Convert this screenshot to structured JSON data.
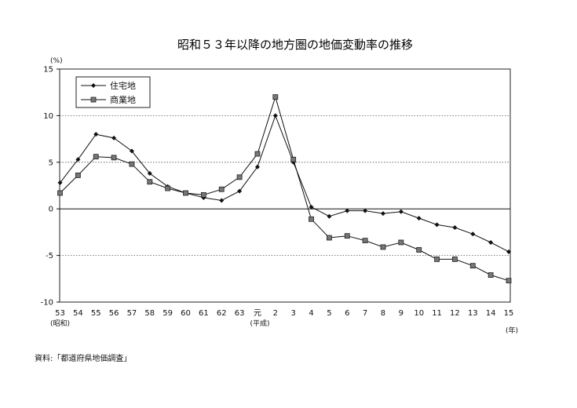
{
  "chart_data": {
    "type": "line",
    "title": "昭和５３年以降の地方圏の地価変動率の推移",
    "yunit": "(%)",
    "xunit": "(年)",
    "era_label_showa": "(昭和)",
    "era_label_heisei": "(平成)",
    "categories": [
      "53",
      "54",
      "55",
      "56",
      "57",
      "58",
      "59",
      "60",
      "61",
      "62",
      "63",
      "元",
      "2",
      "3",
      "4",
      "5",
      "6",
      "7",
      "8",
      "9",
      "10",
      "11",
      "12",
      "13",
      "14",
      "15"
    ],
    "ylim": [
      -10,
      15
    ],
    "yticks": [
      -10,
      -5,
      0,
      5,
      10,
      15
    ],
    "grid": "dotted-horizontal",
    "legend_position": "top-left",
    "series": [
      {
        "name": "住宅地",
        "marker": "diamond",
        "values": [
          2.8,
          5.3,
          8.0,
          7.6,
          6.2,
          3.8,
          2.4,
          1.7,
          1.2,
          0.9,
          1.9,
          4.5,
          10.0,
          5.0,
          0.2,
          -0.8,
          -0.2,
          -0.2,
          -0.5,
          -0.3,
          -1.0,
          -1.7,
          -2.0,
          -2.7,
          -3.6,
          -4.6
        ]
      },
      {
        "name": "商業地",
        "marker": "square",
        "values": [
          1.7,
          3.6,
          5.6,
          5.5,
          4.8,
          2.9,
          2.2,
          1.7,
          1.5,
          2.1,
          3.4,
          5.9,
          12.0,
          5.3,
          -1.1,
          -3.1,
          -2.9,
          -3.4,
          -4.1,
          -3.6,
          -4.4,
          -5.4,
          -5.4,
          -6.1,
          -7.1,
          -7.7
        ]
      }
    ]
  },
  "source_note": "資料:「都道府県地価調査」"
}
